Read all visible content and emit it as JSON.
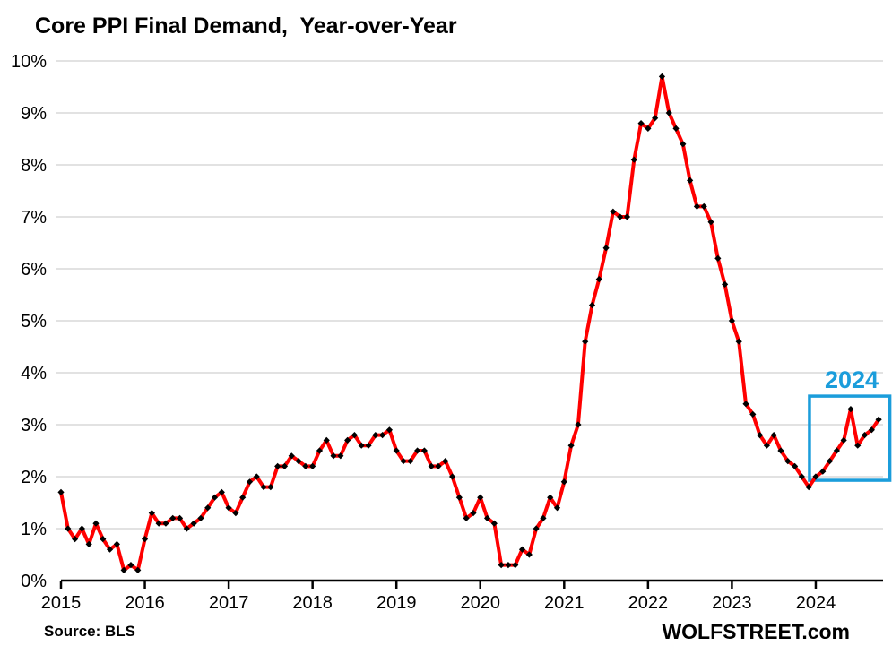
{
  "page": {
    "background": "#FFFFFF"
  },
  "header": {
    "title": "Core PPI Final Demand,  Year-over-Year"
  },
  "footer": {
    "source": "Source: BLS",
    "watermark": "WOLFSTREET.com"
  },
  "chart_data": {
    "type": "line",
    "title": "Core PPI Final Demand,  Year-over-Year",
    "xlabel": "",
    "ylabel": "",
    "x_start": "2015-01",
    "frequency": "monthly",
    "x_tick_labels": [
      "2015",
      "2016",
      "2017",
      "2018",
      "2019",
      "2020",
      "2021",
      "2022",
      "2023",
      "2024"
    ],
    "y_tick_labels": [
      "0%",
      "1%",
      "2%",
      "3%",
      "4%",
      "5%",
      "6%",
      "7%",
      "8%",
      "9%",
      "10%"
    ],
    "ylim": [
      0,
      10
    ],
    "grid": true,
    "grid_color": "#D9D9D9",
    "axis_color": "#000000",
    "legend": "none",
    "series": [
      {
        "name": "Core PPI Final Demand, year-over-year %",
        "color": "#FF0000",
        "marker": "diamond",
        "marker_color": "#000000",
        "values": [
          1.7,
          1.0,
          0.8,
          1.0,
          0.7,
          1.1,
          0.8,
          0.6,
          0.7,
          0.2,
          0.3,
          0.2,
          0.8,
          1.3,
          1.1,
          1.1,
          1.2,
          1.2,
          1.0,
          1.1,
          1.2,
          1.4,
          1.6,
          1.7,
          1.4,
          1.3,
          1.6,
          1.9,
          2.0,
          1.8,
          1.8,
          2.2,
          2.2,
          2.4,
          2.3,
          2.2,
          2.2,
          2.5,
          2.7,
          2.4,
          2.4,
          2.7,
          2.8,
          2.6,
          2.6,
          2.8,
          2.8,
          2.9,
          2.5,
          2.3,
          2.3,
          2.5,
          2.5,
          2.2,
          2.2,
          2.3,
          2.0,
          1.6,
          1.2,
          1.3,
          1.6,
          1.2,
          1.1,
          0.3,
          0.3,
          0.3,
          0.6,
          0.5,
          1.0,
          1.2,
          1.6,
          1.4,
          1.9,
          2.6,
          3.0,
          4.6,
          5.3,
          5.8,
          6.4,
          7.1,
          7.0,
          7.0,
          8.1,
          8.8,
          8.7,
          8.9,
          9.7,
          9.0,
          8.7,
          8.4,
          7.7,
          7.2,
          7.2,
          6.9,
          6.2,
          5.7,
          5.0,
          4.6,
          3.4,
          3.2,
          2.8,
          2.6,
          2.8,
          2.5,
          2.3,
          2.2,
          2.0,
          1.8,
          2.0,
          2.1,
          2.3,
          2.5,
          2.7,
          3.3,
          2.6,
          2.8,
          2.9,
          3.1
        ]
      }
    ],
    "annotation_box": {
      "label": "2024",
      "color": "#1B9DDB",
      "from_month_index": 107.1,
      "to_month_index": 118.6,
      "y_top_pct": 3.55,
      "y_bottom_pct": 1.93
    }
  }
}
